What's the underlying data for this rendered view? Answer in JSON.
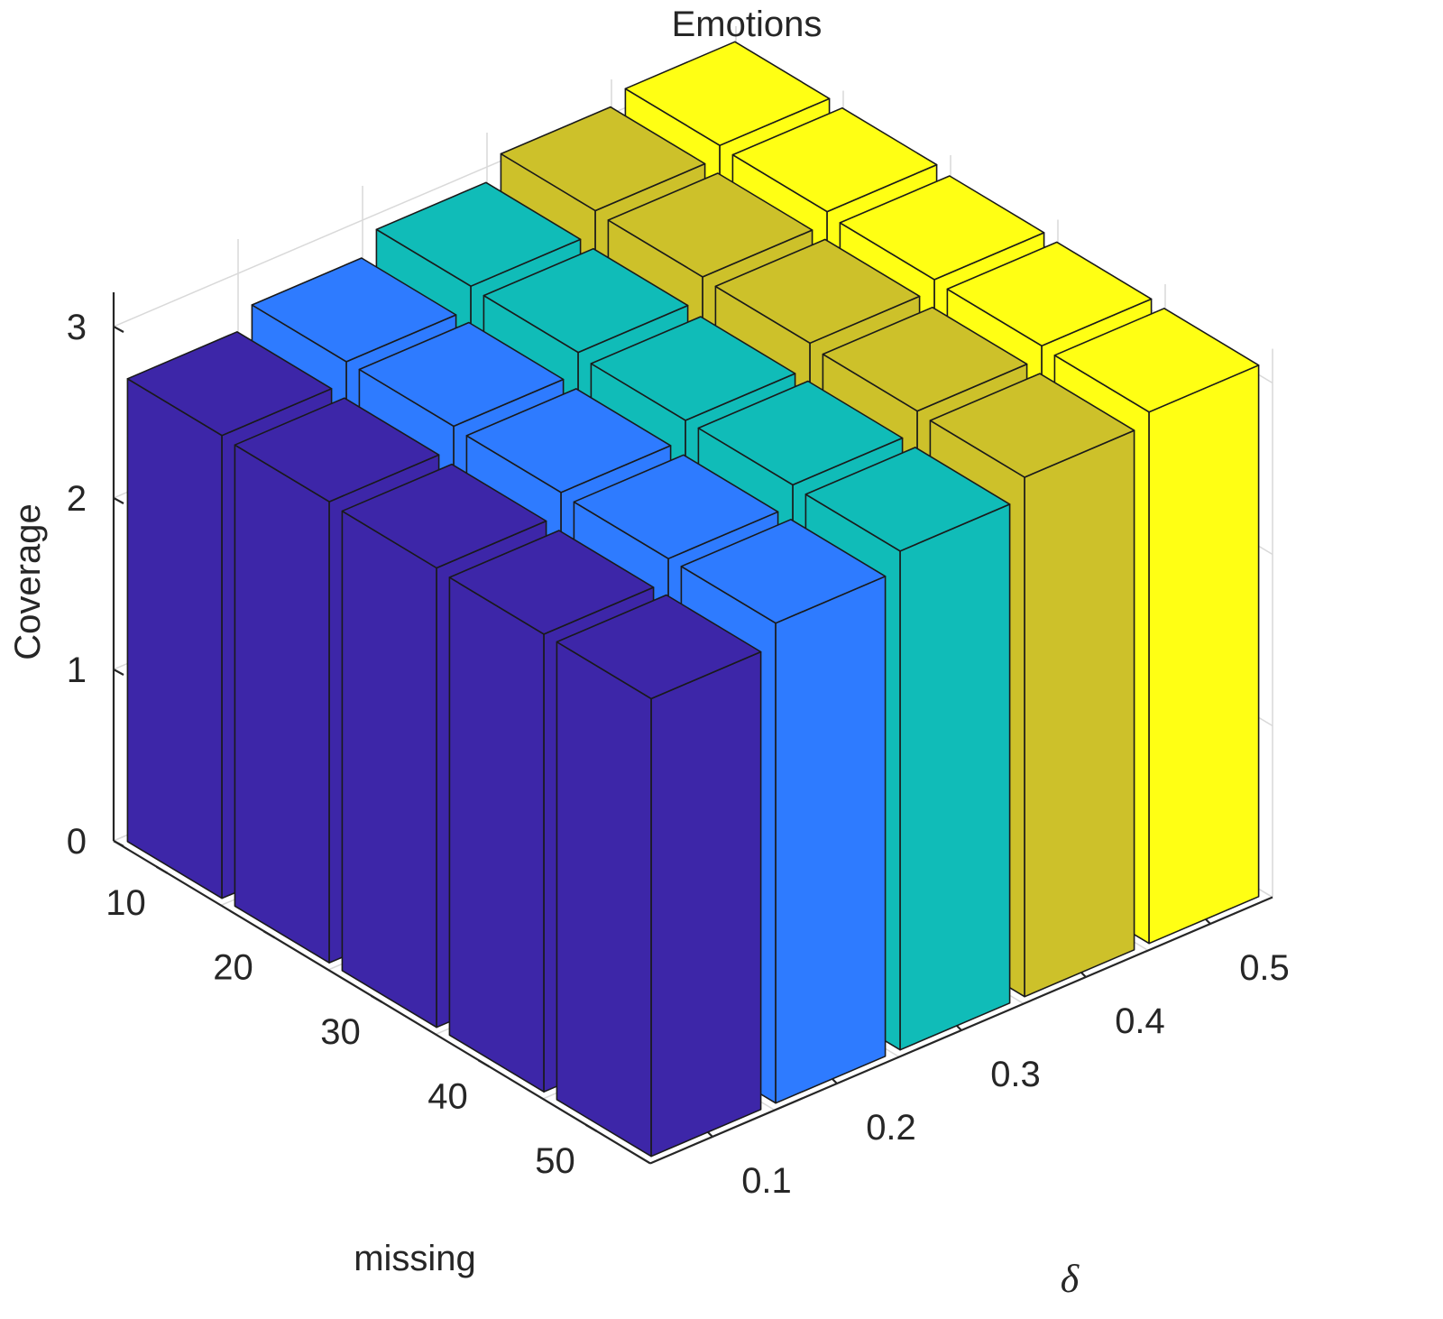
{
  "chart_data": {
    "type": "bar3d",
    "title": "Emotions",
    "xlabel": "missing",
    "ylabel": "δ",
    "zlabel": "Coverage",
    "x_categories": [
      "10",
      "20",
      "30",
      "40",
      "50"
    ],
    "y_categories": [
      "0.1",
      "0.2",
      "0.3",
      "0.4",
      "0.5"
    ],
    "z_ticks": [
      "0",
      "1",
      "2",
      "3"
    ],
    "zlim": [
      0,
      3.2
    ],
    "grid": true,
    "series": [
      {
        "values": [
          2.7,
          2.69,
          2.68,
          2.67,
          2.67
        ],
        "color": "#3d26a8"
      },
      {
        "values": [
          2.82,
          2.82,
          2.81,
          2.8,
          2.8
        ],
        "color": "#2e7bff"
      },
      {
        "values": [
          2.95,
          2.94,
          2.92,
          2.92,
          2.91
        ],
        "color": "#10bcb8"
      },
      {
        "values": [
          3.08,
          3.07,
          3.06,
          3.04,
          3.03
        ],
        "color": "#cdc12a"
      },
      {
        "values": [
          3.15,
          3.14,
          3.12,
          3.11,
          3.1
        ],
        "color": "#ffff14"
      }
    ]
  }
}
